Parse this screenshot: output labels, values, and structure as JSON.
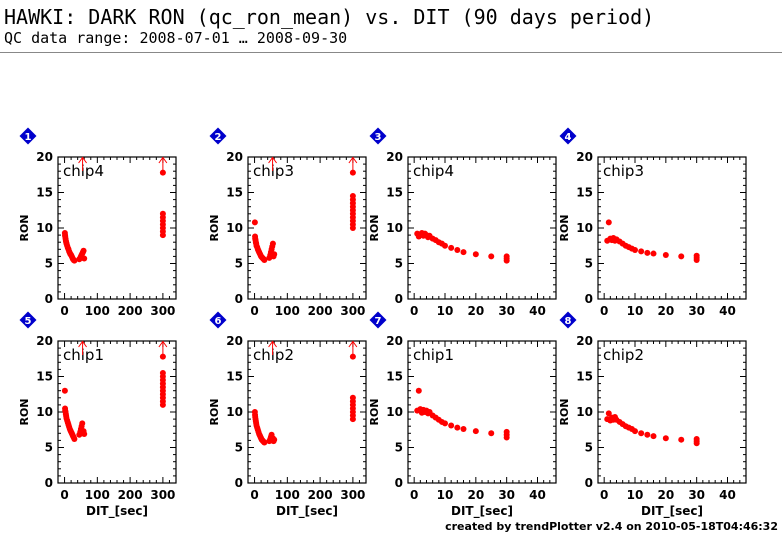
{
  "header": {
    "title": "HAWKI: DARK RON (qc_ron_mean) vs. DIT (90 days period)",
    "subtitle": "QC data range: 2008-07-01 … 2008-09-30"
  },
  "footer": {
    "text": "created by trendPlotter v2.4 on 2010-05-18T04:46:32"
  },
  "colors": {
    "marker": "#ff0000",
    "badge": "#0000cc",
    "axis": "#000000"
  },
  "chart_data": [
    {
      "type": "scatter",
      "panel": "1",
      "label": "chip4",
      "ylabel": "RON",
      "xlabel": "",
      "xlim": [
        -20,
        340
      ],
      "ylim": [
        0,
        20
      ],
      "xticks": [
        0,
        100,
        200,
        300
      ],
      "yticks": [
        0,
        5,
        10,
        15,
        20
      ],
      "show_xticklabels": true,
      "arrows": [
        55,
        300
      ],
      "points": [
        [
          1,
          9.3
        ],
        [
          1.5,
          9.0
        ],
        [
          2,
          8.8
        ],
        [
          3,
          8.5
        ],
        [
          4,
          8.2
        ],
        [
          5,
          8.0
        ],
        [
          6,
          7.8
        ],
        [
          8,
          7.5
        ],
        [
          10,
          7.2
        ],
        [
          12,
          7.0
        ],
        [
          14,
          6.7
        ],
        [
          16,
          6.5
        ],
        [
          18,
          6.3
        ],
        [
          20,
          6.2
        ],
        [
          22,
          6.0
        ],
        [
          24,
          5.8
        ],
        [
          26,
          5.6
        ],
        [
          28,
          5.5
        ],
        [
          30,
          5.4
        ],
        [
          45,
          5.6
        ],
        [
          48,
          5.8
        ],
        [
          50,
          6.0
        ],
        [
          52,
          6.2
        ],
        [
          54,
          6.4
        ],
        [
          56,
          6.6
        ],
        [
          58,
          6.8
        ],
        [
          60,
          5.7
        ],
        [
          300,
          9.0
        ],
        [
          300,
          9.5
        ],
        [
          300,
          10.0
        ],
        [
          300,
          10.5
        ],
        [
          300,
          11.0
        ],
        [
          300,
          11.5
        ],
        [
          300,
          12.0
        ],
        [
          300,
          17.8
        ]
      ]
    },
    {
      "type": "scatter",
      "panel": "2",
      "label": "chip3",
      "ylabel": "RON",
      "xlabel": "",
      "xlim": [
        -20,
        340
      ],
      "ylim": [
        0,
        20
      ],
      "xticks": [
        0,
        100,
        200,
        300
      ],
      "yticks": [
        0,
        5,
        10,
        15,
        20
      ],
      "show_xticklabels": true,
      "arrows": [
        55,
        300
      ],
      "points": [
        [
          1,
          10.8
        ],
        [
          1.5,
          8.8
        ],
        [
          2,
          8.5
        ],
        [
          3,
          8.3
        ],
        [
          4,
          8.0
        ],
        [
          5,
          7.8
        ],
        [
          6,
          7.5
        ],
        [
          8,
          7.3
        ],
        [
          10,
          7.0
        ],
        [
          12,
          6.8
        ],
        [
          14,
          6.6
        ],
        [
          16,
          6.4
        ],
        [
          18,
          6.2
        ],
        [
          20,
          6.0
        ],
        [
          22,
          5.9
        ],
        [
          24,
          5.8
        ],
        [
          26,
          5.7
        ],
        [
          28,
          5.6
        ],
        [
          30,
          5.5
        ],
        [
          45,
          5.8
        ],
        [
          48,
          6.2
        ],
        [
          50,
          6.6
        ],
        [
          52,
          7.0
        ],
        [
          54,
          7.4
        ],
        [
          56,
          7.8
        ],
        [
          58,
          6.0
        ],
        [
          60,
          6.3
        ],
        [
          300,
          10.0
        ],
        [
          300,
          10.5
        ],
        [
          300,
          11.0
        ],
        [
          300,
          11.5
        ],
        [
          300,
          12.0
        ],
        [
          300,
          12.5
        ],
        [
          300,
          13.0
        ],
        [
          300,
          13.5
        ],
        [
          300,
          14.0
        ],
        [
          300,
          14.5
        ],
        [
          300,
          17.8
        ]
      ]
    },
    {
      "type": "scatter",
      "panel": "3",
      "label": "chip4",
      "ylabel": "RON",
      "xlabel": "",
      "xlim": [
        -2,
        46
      ],
      "ylim": [
        0,
        20
      ],
      "xticks": [
        0,
        10,
        20,
        30,
        40
      ],
      "yticks": [
        0,
        5,
        10,
        15,
        20
      ],
      "show_xticklabels": true,
      "arrows": [],
      "points": [
        [
          1,
          9.2
        ],
        [
          1.5,
          8.8
        ],
        [
          2,
          9.1
        ],
        [
          2.5,
          9.3
        ],
        [
          3,
          8.9
        ],
        [
          3.5,
          9.2
        ],
        [
          4,
          9.0
        ],
        [
          4.5,
          8.7
        ],
        [
          5,
          8.9
        ],
        [
          6,
          8.5
        ],
        [
          7,
          8.3
        ],
        [
          8,
          8.0
        ],
        [
          9,
          7.8
        ],
        [
          10,
          7.5
        ],
        [
          12,
          7.2
        ],
        [
          14,
          6.9
        ],
        [
          16,
          6.6
        ],
        [
          20,
          6.3
        ],
        [
          25,
          6.0
        ],
        [
          30,
          5.4
        ],
        [
          30,
          5.7
        ],
        [
          30,
          6.0
        ]
      ]
    },
    {
      "type": "scatter",
      "panel": "4",
      "label": "chip3",
      "ylabel": "RON",
      "xlabel": "",
      "xlim": [
        -2,
        46
      ],
      "ylim": [
        0,
        20
      ],
      "xticks": [
        0,
        10,
        20,
        30,
        40
      ],
      "yticks": [
        0,
        5,
        10,
        15,
        20
      ],
      "show_xticklabels": true,
      "arrows": [],
      "points": [
        [
          1,
          8.2
        ],
        [
          1.5,
          10.8
        ],
        [
          2,
          8.5
        ],
        [
          2.5,
          8.3
        ],
        [
          3,
          8.6
        ],
        [
          3.5,
          8.2
        ],
        [
          4,
          8.4
        ],
        [
          5,
          8.1
        ],
        [
          6,
          7.8
        ],
        [
          7,
          7.5
        ],
        [
          8,
          7.3
        ],
        [
          9,
          7.1
        ],
        [
          10,
          6.9
        ],
        [
          12,
          6.7
        ],
        [
          14,
          6.5
        ],
        [
          16,
          6.4
        ],
        [
          20,
          6.2
        ],
        [
          25,
          6.0
        ],
        [
          30,
          5.5
        ],
        [
          30,
          5.8
        ],
        [
          30,
          6.1
        ]
      ]
    },
    {
      "type": "scatter",
      "panel": "5",
      "label": "chip1",
      "ylabel": "RON",
      "xlabel": "DIT_[sec]",
      "xlim": [
        -20,
        340
      ],
      "ylim": [
        0,
        20
      ],
      "xticks": [
        0,
        100,
        200,
        300
      ],
      "yticks": [
        0,
        5,
        10,
        15,
        20
      ],
      "show_xticklabels": true,
      "arrows": [
        55,
        300
      ],
      "points": [
        [
          1,
          13.0
        ],
        [
          1.5,
          10.5
        ],
        [
          2,
          10.2
        ],
        [
          3,
          10.0
        ],
        [
          4,
          9.7
        ],
        [
          5,
          9.4
        ],
        [
          6,
          9.1
        ],
        [
          8,
          8.8
        ],
        [
          10,
          8.5
        ],
        [
          12,
          8.2
        ],
        [
          14,
          7.9
        ],
        [
          16,
          7.6
        ],
        [
          18,
          7.4
        ],
        [
          20,
          7.2
        ],
        [
          22,
          7.0
        ],
        [
          24,
          6.8
        ],
        [
          26,
          6.6
        ],
        [
          28,
          6.4
        ],
        [
          30,
          6.2
        ],
        [
          45,
          6.8
        ],
        [
          48,
          7.2
        ],
        [
          50,
          7.6
        ],
        [
          52,
          8.0
        ],
        [
          54,
          8.4
        ],
        [
          56,
          7.0
        ],
        [
          58,
          7.3
        ],
        [
          60,
          6.9
        ],
        [
          300,
          11.0
        ],
        [
          300,
          11.5
        ],
        [
          300,
          12.0
        ],
        [
          300,
          12.5
        ],
        [
          300,
          13.0
        ],
        [
          300,
          13.5
        ],
        [
          300,
          14.0
        ],
        [
          300,
          14.5
        ],
        [
          300,
          15.0
        ],
        [
          300,
          15.5
        ],
        [
          300,
          17.8
        ]
      ]
    },
    {
      "type": "scatter",
      "panel": "6",
      "label": "chip2",
      "ylabel": "RON",
      "xlabel": "DIT_[sec]",
      "xlim": [
        -20,
        340
      ],
      "ylim": [
        0,
        20
      ],
      "xticks": [
        0,
        100,
        200,
        300
      ],
      "yticks": [
        0,
        5,
        10,
        15,
        20
      ],
      "show_xticklabels": true,
      "arrows": [
        55,
        300
      ],
      "points": [
        [
          1,
          10.0
        ],
        [
          1.5,
          9.6
        ],
        [
          2,
          9.3
        ],
        [
          3,
          9.0
        ],
        [
          4,
          8.7
        ],
        [
          5,
          8.4
        ],
        [
          6,
          8.1
        ],
        [
          8,
          7.8
        ],
        [
          10,
          7.5
        ],
        [
          12,
          7.2
        ],
        [
          14,
          6.9
        ],
        [
          16,
          6.7
        ],
        [
          18,
          6.5
        ],
        [
          20,
          6.3
        ],
        [
          22,
          6.1
        ],
        [
          24,
          6.0
        ],
        [
          26,
          5.9
        ],
        [
          28,
          5.8
        ],
        [
          30,
          5.7
        ],
        [
          45,
          5.9
        ],
        [
          48,
          6.2
        ],
        [
          50,
          6.5
        ],
        [
          52,
          6.8
        ],
        [
          54,
          6.0
        ],
        [
          56,
          6.3
        ],
        [
          58,
          5.9
        ],
        [
          60,
          6.1
        ],
        [
          300,
          9.0
        ],
        [
          300,
          9.5
        ],
        [
          300,
          10.0
        ],
        [
          300,
          10.5
        ],
        [
          300,
          11.0
        ],
        [
          300,
          11.5
        ],
        [
          300,
          12.0
        ],
        [
          300,
          17.8
        ]
      ]
    },
    {
      "type": "scatter",
      "panel": "7",
      "label": "chip1",
      "ylabel": "RON",
      "xlabel": "DIT_[sec]",
      "xlim": [
        -2,
        46
      ],
      "ylim": [
        0,
        20
      ],
      "xticks": [
        0,
        10,
        20,
        30,
        40
      ],
      "yticks": [
        0,
        5,
        10,
        15,
        20
      ],
      "show_xticklabels": true,
      "arrows": [],
      "points": [
        [
          1,
          10.2
        ],
        [
          1.5,
          13.0
        ],
        [
          2,
          10.4
        ],
        [
          2.5,
          9.9
        ],
        [
          3,
          10.3
        ],
        [
          3.5,
          10.0
        ],
        [
          4,
          10.2
        ],
        [
          4.5,
          9.8
        ],
        [
          5,
          10.0
        ],
        [
          6,
          9.5
        ],
        [
          7,
          9.2
        ],
        [
          8,
          8.9
        ],
        [
          9,
          8.6
        ],
        [
          10,
          8.4
        ],
        [
          12,
          8.1
        ],
        [
          14,
          7.8
        ],
        [
          16,
          7.6
        ],
        [
          20,
          7.3
        ],
        [
          25,
          7.0
        ],
        [
          30,
          6.4
        ],
        [
          30,
          6.8
        ],
        [
          30,
          7.2
        ]
      ]
    },
    {
      "type": "scatter",
      "panel": "8",
      "label": "chip2",
      "ylabel": "RON",
      "xlabel": "DIT_[sec]",
      "xlim": [
        -2,
        46
      ],
      "ylim": [
        0,
        20
      ],
      "xticks": [
        0,
        10,
        20,
        30,
        40
      ],
      "yticks": [
        0,
        5,
        10,
        15,
        20
      ],
      "show_xticklabels": true,
      "arrows": [],
      "points": [
        [
          1,
          9.0
        ],
        [
          1.5,
          9.8
        ],
        [
          2,
          8.8
        ],
        [
          2.5,
          9.2
        ],
        [
          3,
          8.9
        ],
        [
          3.5,
          9.3
        ],
        [
          4,
          8.9
        ],
        [
          5,
          8.6
        ],
        [
          6,
          8.3
        ],
        [
          7,
          8.0
        ],
        [
          8,
          7.8
        ],
        [
          9,
          7.6
        ],
        [
          10,
          7.3
        ],
        [
          12,
          7.0
        ],
        [
          14,
          6.8
        ],
        [
          16,
          6.6
        ],
        [
          20,
          6.3
        ],
        [
          25,
          6.1
        ],
        [
          30,
          5.6
        ],
        [
          30,
          5.9
        ],
        [
          30,
          6.2
        ]
      ]
    }
  ]
}
